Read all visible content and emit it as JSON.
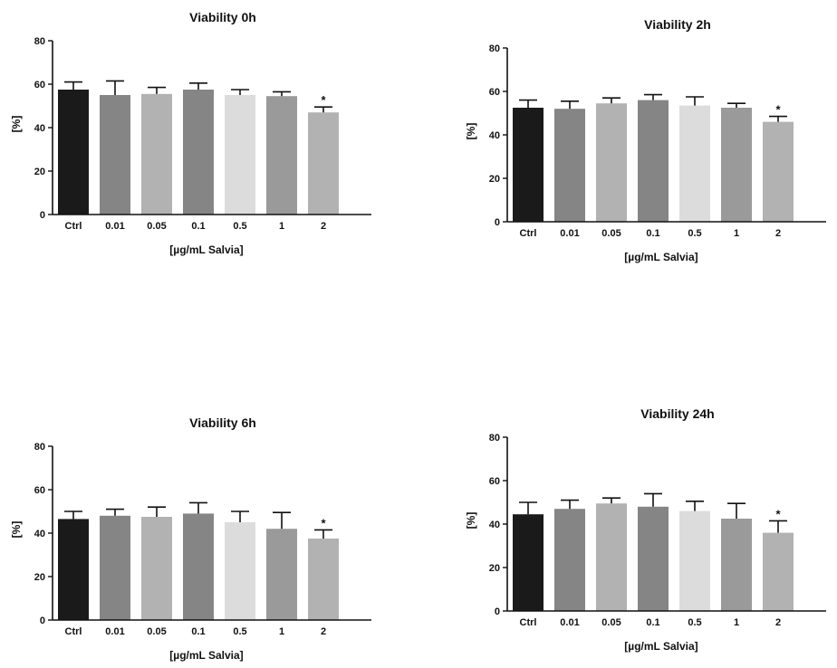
{
  "chart_data": [
    {
      "type": "bar",
      "title": "Viability 0h",
      "xlabel": "[µg/mL Salvia]",
      "ylabel": "[%]",
      "ylim": [
        0,
        80
      ],
      "yticks": [
        "0",
        "20",
        "40",
        "60",
        "80"
      ],
      "categories": [
        "Ctrl",
        "0.01",
        "0.05",
        "0.1",
        "0.5",
        "1",
        "2"
      ],
      "values": [
        57.5,
        55,
        55.5,
        57.5,
        55,
        54.5,
        47
      ],
      "errors": [
        3.5,
        6.5,
        3,
        3,
        2.5,
        2,
        2.5
      ],
      "colors": [
        "#1a1a1a",
        "#858585",
        "#b2b2b2",
        "#858585",
        "#dcdcdc",
        "#9a9a9a",
        "#b2b2b2"
      ],
      "annotations": [
        "",
        "",
        "",
        "",
        "",
        "",
        "*"
      ],
      "grid": false,
      "legend": "none"
    },
    {
      "type": "bar",
      "title": "Viability 2h",
      "xlabel": "[µg/mL Salvia]",
      "ylabel": "[%]",
      "ylim": [
        0,
        80
      ],
      "yticks": [
        "0",
        "20",
        "40",
        "60",
        "80"
      ],
      "categories": [
        "Ctrl",
        "0.01",
        "0.05",
        "0.1",
        "0.5",
        "1",
        "2"
      ],
      "values": [
        52.5,
        52,
        54.5,
        56,
        53.5,
        52.5,
        46
      ],
      "errors": [
        3.5,
        3.5,
        2.5,
        2.5,
        4,
        2,
        2.5
      ],
      "colors": [
        "#1a1a1a",
        "#858585",
        "#b2b2b2",
        "#858585",
        "#dcdcdc",
        "#9a9a9a",
        "#b2b2b2"
      ],
      "annotations": [
        "",
        "",
        "",
        "",
        "",
        "",
        "*"
      ],
      "grid": false,
      "legend": "none"
    },
    {
      "type": "bar",
      "title": "Viability 6h",
      "xlabel": "[µg/mL Salvia]",
      "ylabel": "[%]",
      "ylim": [
        0,
        80
      ],
      "yticks": [
        "0",
        "20",
        "40",
        "60",
        "80"
      ],
      "categories": [
        "Ctrl",
        "0.01",
        "0.05",
        "0.1",
        "0.5",
        "1",
        "2"
      ],
      "values": [
        46.5,
        48,
        47.5,
        49,
        45,
        42,
        37.5
      ],
      "errors": [
        3.5,
        3,
        4.5,
        5,
        5,
        7.5,
        4
      ],
      "colors": [
        "#1a1a1a",
        "#858585",
        "#b2b2b2",
        "#858585",
        "#dcdcdc",
        "#9a9a9a",
        "#b2b2b2"
      ],
      "annotations": [
        "",
        "",
        "",
        "",
        "",
        "",
        "*"
      ],
      "grid": false,
      "legend": "none"
    },
    {
      "type": "bar",
      "title": "Viability 24h",
      "xlabel": "[µg/mL Salvia]",
      "ylabel": "[%]",
      "ylim": [
        0,
        80
      ],
      "yticks": [
        "0",
        "20",
        "40",
        "60",
        "80"
      ],
      "categories": [
        "Ctrl",
        "0.01",
        "0.05",
        "0.1",
        "0.5",
        "1",
        "2"
      ],
      "values": [
        44.5,
        47,
        49.5,
        48,
        46,
        42.5,
        36
      ],
      "errors": [
        5.5,
        4,
        2.5,
        6,
        4.5,
        7,
        5.5
      ],
      "colors": [
        "#1a1a1a",
        "#858585",
        "#b2b2b2",
        "#858585",
        "#dcdcdc",
        "#9a9a9a",
        "#b2b2b2"
      ],
      "annotations": [
        "",
        "",
        "",
        "",
        "",
        "",
        "*"
      ],
      "grid": false,
      "legend": "none"
    }
  ]
}
